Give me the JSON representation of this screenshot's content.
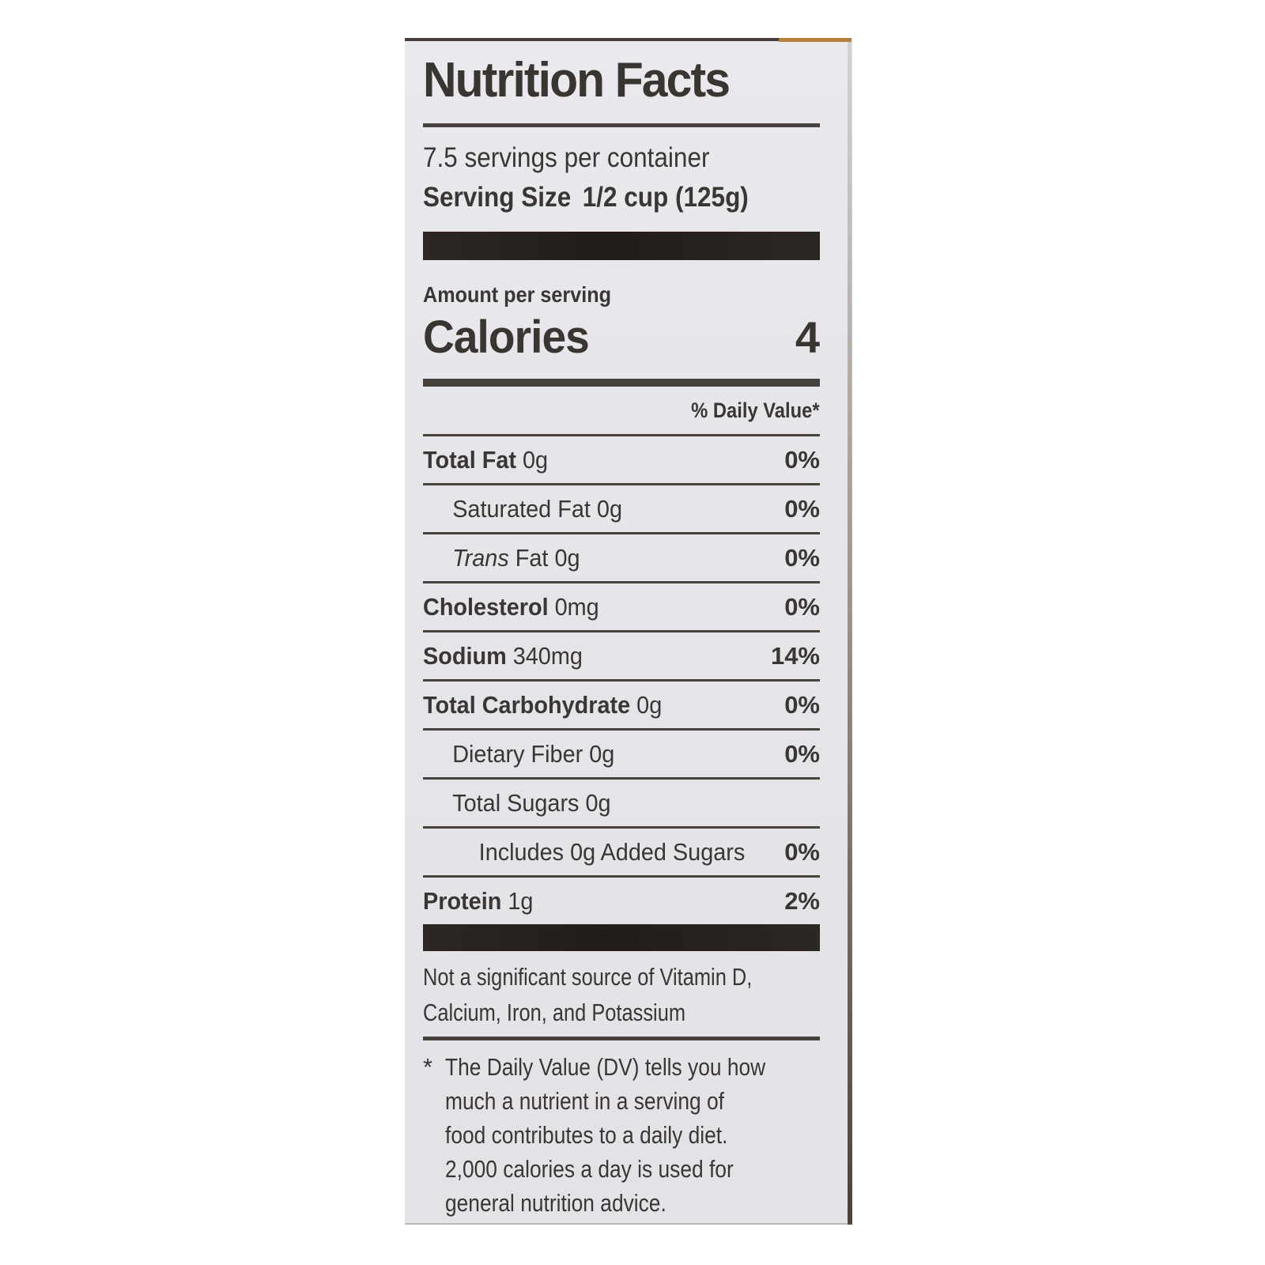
{
  "label": {
    "title": "Nutrition Facts",
    "servings_per_container": "7.5 servings per container",
    "serving_size_label": "Serving Size",
    "serving_size_value": "1/2 cup (125g)",
    "amount_per_serving": "Amount per serving",
    "calories_label": "Calories",
    "calories_value": "4",
    "daily_value_header": "% Daily Value*",
    "rows": [
      {
        "name": "Total Fat",
        "amount": "0g",
        "dv": "0%",
        "bold": true,
        "indent": 0
      },
      {
        "name": "Saturated Fat",
        "amount": "0g",
        "dv": "0%",
        "bold": false,
        "indent": 1
      },
      {
        "name_italic": "Trans",
        "name": "Fat",
        "amount": "0g",
        "dv": "0%",
        "bold": false,
        "indent": 1
      },
      {
        "name": "Cholesterol",
        "amount": "0mg",
        "dv": "0%",
        "bold": true,
        "indent": 0
      },
      {
        "name": "Sodium",
        "amount": "340mg",
        "dv": "14%",
        "bold": true,
        "indent": 0
      },
      {
        "name": "Total Carbohydrate",
        "amount": "0g",
        "dv": "0%",
        "bold": true,
        "indent": 0
      },
      {
        "name": "Dietary Fiber",
        "amount": "0g",
        "dv": "0%",
        "bold": false,
        "indent": 1
      },
      {
        "name": "Total Sugars",
        "amount": "0g",
        "dv": "",
        "bold": false,
        "indent": 1
      },
      {
        "name": "Includes 0g Added Sugars",
        "amount": "",
        "dv": "0%",
        "bold": false,
        "indent": 2
      },
      {
        "name": "Protein",
        "amount": "1g",
        "dv": "2%",
        "bold": true,
        "indent": 0
      }
    ],
    "not_significant_lines": [
      "Not a significant source of Vitamin D,",
      "Calcium, Iron, and Potassium"
    ],
    "footnote_marker": "*",
    "footnote_lines": [
      "The Daily Value (DV) tells you how",
      "much a nutrient in a serving of",
      "food contributes to a daily diet.",
      "2,000 calories a day is used for",
      "general nutrition advice."
    ]
  },
  "colors": {
    "label_background": "#e7e6ea",
    "text_ink": "#3a3633",
    "divider_rule": "#47423b",
    "heavy_bar": "#292320",
    "edge_accent_orange": "#b5813b"
  }
}
